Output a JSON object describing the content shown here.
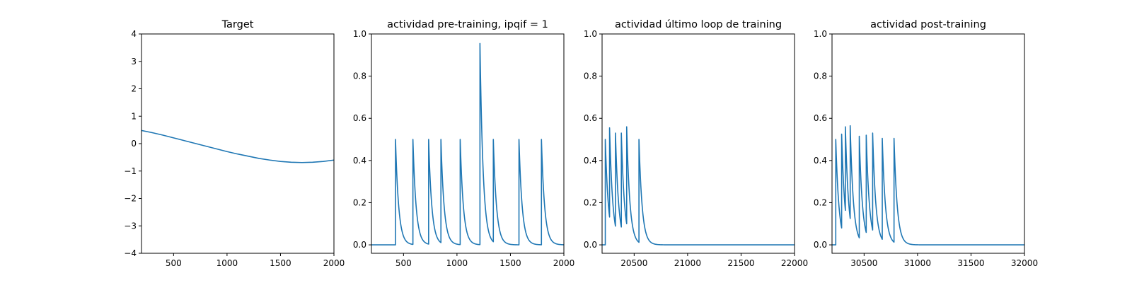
{
  "chart_data": [
    {
      "type": "line",
      "title": "Target",
      "xlim": [
        200,
        2000
      ],
      "ylim": [
        -4,
        4
      ],
      "xticks": [
        500,
        1000,
        1500,
        2000
      ],
      "xtick_labels": [
        "500",
        "1000",
        "1500",
        "2000"
      ],
      "yticks": [
        -4,
        -3,
        -2,
        -1,
        0,
        1,
        2,
        3,
        4
      ],
      "ytick_labels": [
        "−4",
        "−3",
        "−2",
        "−1",
        "0",
        "1",
        "2",
        "3",
        "4"
      ],
      "color": "#1f77b4",
      "series": [
        {
          "x": [
            200,
            300,
            400,
            500,
            600,
            700,
            800,
            900,
            1000,
            1100,
            1200,
            1300,
            1400,
            1500,
            1600,
            1700,
            1800,
            1900,
            2000
          ],
          "y": [
            0.48,
            0.4,
            0.31,
            0.21,
            0.11,
            0.01,
            -0.09,
            -0.19,
            -0.29,
            -0.38,
            -0.46,
            -0.54,
            -0.6,
            -0.65,
            -0.68,
            -0.69,
            -0.68,
            -0.65,
            -0.6
          ]
        }
      ]
    },
    {
      "type": "line",
      "title": "actividad pre-training, ipqif = 1",
      "xlim": [
        200,
        2000
      ],
      "ylim": [
        -0.04,
        1.0
      ],
      "xticks": [
        500,
        1000,
        1500,
        2000
      ],
      "xtick_labels": [
        "500",
        "1000",
        "1500",
        "2000"
      ],
      "yticks": [
        0.0,
        0.2,
        0.4,
        0.6,
        0.8,
        1.0
      ],
      "ytick_labels": [
        "0.0",
        "0.2",
        "0.4",
        "0.6",
        "0.8",
        "1.0"
      ],
      "color": "#1f77b4",
      "baseline": 0,
      "decay": 30,
      "spikes": [
        {
          "x": 425,
          "peak": 0.5
        },
        {
          "x": 588,
          "peak": 0.5
        },
        {
          "x": 735,
          "peak": 0.5
        },
        {
          "x": 850,
          "peak": 0.5
        },
        {
          "x": 1030,
          "peak": 0.5
        },
        {
          "x": 1215,
          "peak": 0.955
        },
        {
          "x": 1340,
          "peak": 0.5
        },
        {
          "x": 1580,
          "peak": 0.5
        },
        {
          "x": 1790,
          "peak": 0.5
        }
      ]
    },
    {
      "type": "line",
      "title": "actividad último loop de training",
      "xlim": [
        20200,
        22000
      ],
      "ylim": [
        -0.04,
        1.0
      ],
      "xticks": [
        20500,
        21000,
        21500,
        22000
      ],
      "xtick_labels": [
        "20500",
        "21000",
        "21500",
        "22000"
      ],
      "yticks": [
        0.0,
        0.2,
        0.4,
        0.6,
        0.8,
        1.0
      ],
      "ytick_labels": [
        "0.0",
        "0.2",
        "0.4",
        "0.6",
        "0.8",
        "1.0"
      ],
      "color": "#1f77b4",
      "baseline": 0,
      "decay": 30,
      "spikes": [
        {
          "x": 20230,
          "peak": 0.5
        },
        {
          "x": 20270,
          "peak": 0.555
        },
        {
          "x": 20325,
          "peak": 0.53
        },
        {
          "x": 20380,
          "peak": 0.53
        },
        {
          "x": 20430,
          "peak": 0.56
        },
        {
          "x": 20545,
          "peak": 0.5
        }
      ]
    },
    {
      "type": "line",
      "title": "actividad post-training",
      "xlim": [
        30200,
        32000
      ],
      "ylim": [
        -0.04,
        1.0
      ],
      "xticks": [
        30500,
        31000,
        31500,
        32000
      ],
      "xtick_labels": [
        "30500",
        "31000",
        "31500",
        "32000"
      ],
      "yticks": [
        0.0,
        0.2,
        0.4,
        0.6,
        0.8,
        1.0
      ],
      "ytick_labels": [
        "0.0",
        "0.2",
        "0.4",
        "0.6",
        "0.8",
        "1.0"
      ],
      "color": "#1f77b4",
      "baseline": 0,
      "decay": 30,
      "spikes": [
        {
          "x": 30235,
          "peak": 0.5
        },
        {
          "x": 30290,
          "peak": 0.525
        },
        {
          "x": 30325,
          "peak": 0.56
        },
        {
          "x": 30370,
          "peak": 0.565
        },
        {
          "x": 30455,
          "peak": 0.515
        },
        {
          "x": 30520,
          "peak": 0.52
        },
        {
          "x": 30580,
          "peak": 0.53
        },
        {
          "x": 30670,
          "peak": 0.505
        },
        {
          "x": 30780,
          "peak": 0.505
        }
      ]
    }
  ]
}
